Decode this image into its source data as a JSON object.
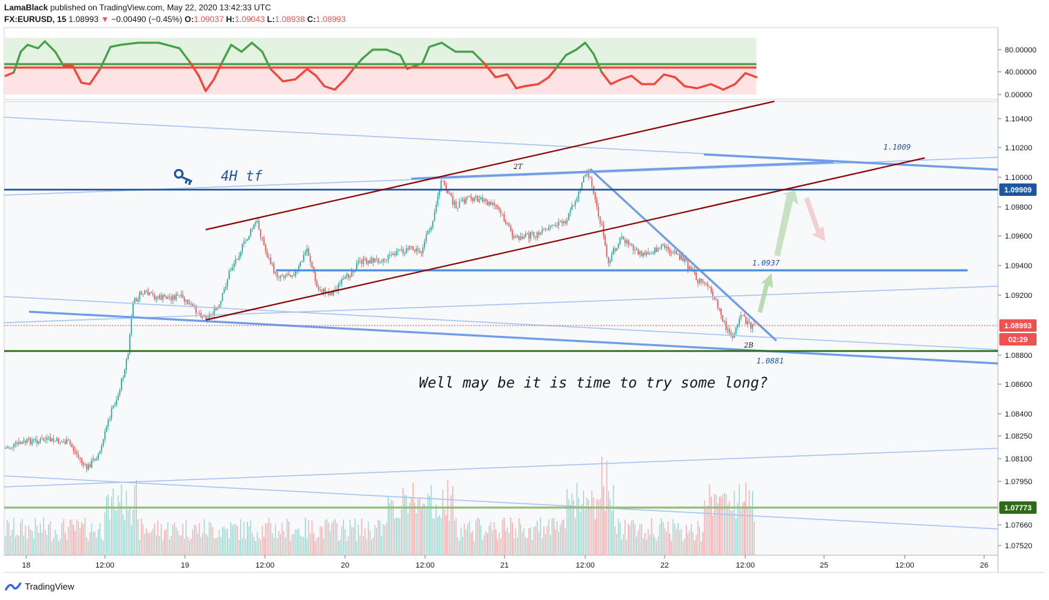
{
  "header": {
    "author": "LamaBlack",
    "published_text": "published on TradingView.com, May 22, 2020 13:42:33 UTC",
    "symbol": "FX:EURUSD, 15",
    "last": "1.08993",
    "change": "−0.00490 (−0.45%)",
    "o_label": "O:",
    "o_value": "1.09037",
    "h_label": "H:",
    "h_value": "1.09043",
    "l_label": "L:",
    "l_value": "1.08938",
    "c_label": "C:",
    "c_value": "1.08993"
  },
  "footer": {
    "brand": "TradingView",
    "icon": "tradingview-logo-icon"
  },
  "colors": {
    "up": "#26a69a",
    "down": "#ef5350",
    "blue_line": "#1e56a0",
    "light_blue": "#6f9ce6",
    "channel": "#8b0000",
    "green_line": "#2e6b16",
    "osc_green": "#43a047",
    "osc_red": "#f44336"
  },
  "chart_data": {
    "type": "candlestick",
    "price_axis": {
      "ticks": [
        "1.10400",
        "1.10200",
        "1.10000",
        "1.09800",
        "1.09600",
        "1.09400",
        "1.09200",
        "1.08800",
        "1.08600",
        "1.08400",
        "1.08250",
        "1.08100",
        "1.07950",
        "1.07660",
        "1.07520"
      ],
      "labels": [
        {
          "text": "1.09909",
          "kind": "blue"
        },
        {
          "text": "1.08993",
          "kind": "red"
        },
        {
          "text": "02:29",
          "kind": "red"
        },
        {
          "text": "1.07773",
          "kind": "green"
        }
      ]
    },
    "time_axis": {
      "ticks": [
        "18",
        "12:00",
        "19",
        "12:00",
        "20",
        "12:00",
        "21",
        "12:00",
        "22",
        "12:00",
        "25",
        "12:00",
        "26"
      ]
    },
    "oscillator": {
      "ticks": [
        "80.00000",
        "40.00000",
        "0.00000"
      ]
    },
    "annotations": {
      "four_h": "4H tf",
      "key_icon": "key-icon",
      "two_t": "2T",
      "two_b": "2B",
      "lvl_1009": "1.1009",
      "lvl_0937": "1.0937",
      "lvl_0881": "1.0881",
      "message": "Well may be it is time to try some long?"
    }
  }
}
